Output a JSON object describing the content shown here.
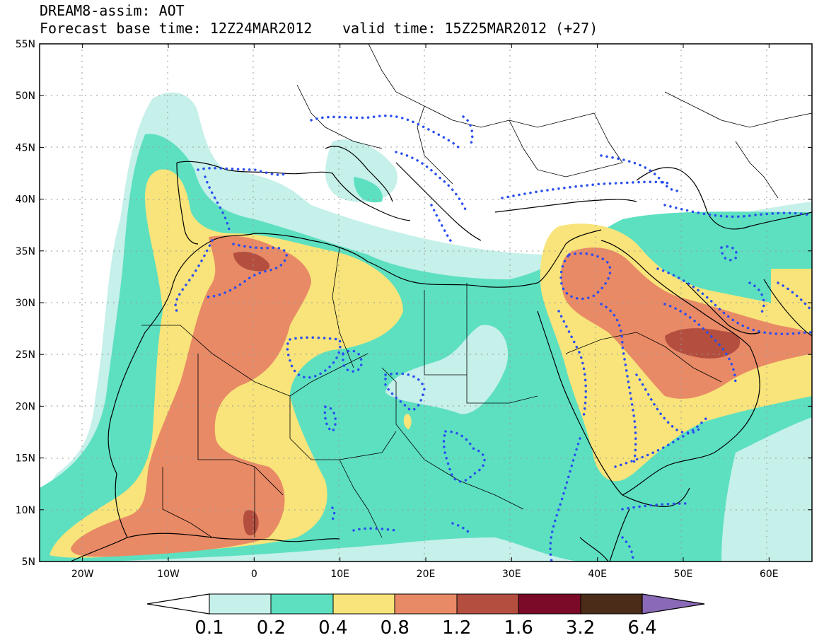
{
  "header": {
    "title": "DREAM8-assim: AOT",
    "base_time": "Forecast base time: 12Z24MAR2012",
    "valid_time": "valid time: 15Z25MAR2012 (+27)"
  },
  "map": {
    "lon_range": [
      -25,
      65
    ],
    "lat_range": [
      5,
      55
    ],
    "lon_ticks": [
      "20W",
      "10W",
      "0",
      "10E",
      "20E",
      "30E",
      "40E",
      "50E",
      "60E"
    ],
    "lat_ticks": [
      "55N",
      "50N",
      "45N",
      "40N",
      "35N",
      "30N",
      "25N",
      "20N",
      "15N",
      "10N",
      "5N"
    ],
    "grid": "dotted",
    "contour_line_style": "blue dotted"
  },
  "colorbar": {
    "levels": [
      "0.1",
      "0.2",
      "0.4",
      "0.8",
      "1.2",
      "1.6",
      "3.2",
      "6.4"
    ],
    "colors": [
      "#ffffff",
      "#c6f0ea",
      "#5de0c0",
      "#f8e47a",
      "#e88a66",
      "#b44f40",
      "#7a0a28",
      "#4a2c18",
      "#8a6ab8"
    ]
  }
}
